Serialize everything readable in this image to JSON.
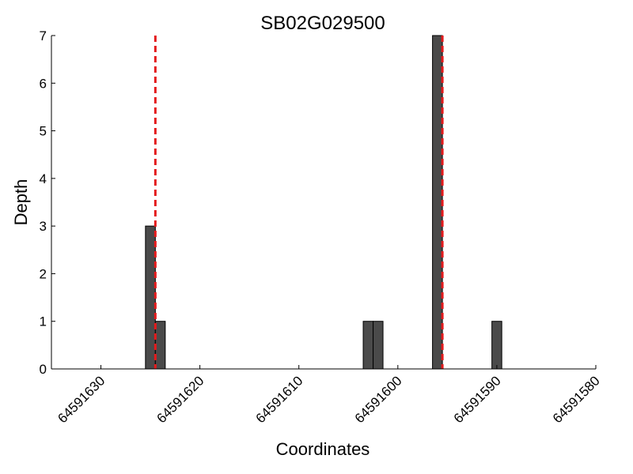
{
  "chart_data": {
    "type": "bar",
    "title": "SB02G029500",
    "xlabel": "Coordinates",
    "ylabel": "Depth",
    "x_axis_inverted": true,
    "xlim": [
      64591635,
      64591580
    ],
    "ylim": [
      0,
      7
    ],
    "xticks": [
      64591630,
      64591620,
      64591610,
      64591600,
      64591590,
      64591580
    ],
    "yticks": [
      0,
      1,
      2,
      3,
      4,
      5,
      6,
      7
    ],
    "bar_width": 1,
    "series": [
      {
        "values": [
          {
            "x": 64591625,
            "y": 3
          },
          {
            "x": 64591624,
            "y": 1
          },
          {
            "x": 64591603,
            "y": 1
          },
          {
            "x": 64591602,
            "y": 1
          },
          {
            "x": 64591596,
            "y": 7
          },
          {
            "x": 64591590,
            "y": 1
          }
        ]
      }
    ],
    "markers": [
      64591624.5,
      64591595.5
    ],
    "grid": false,
    "colors": {
      "bar_fill": "#4a4a4a",
      "bar_edge": "#000000",
      "marker": "#e41a1c",
      "axis": "#000000"
    }
  }
}
